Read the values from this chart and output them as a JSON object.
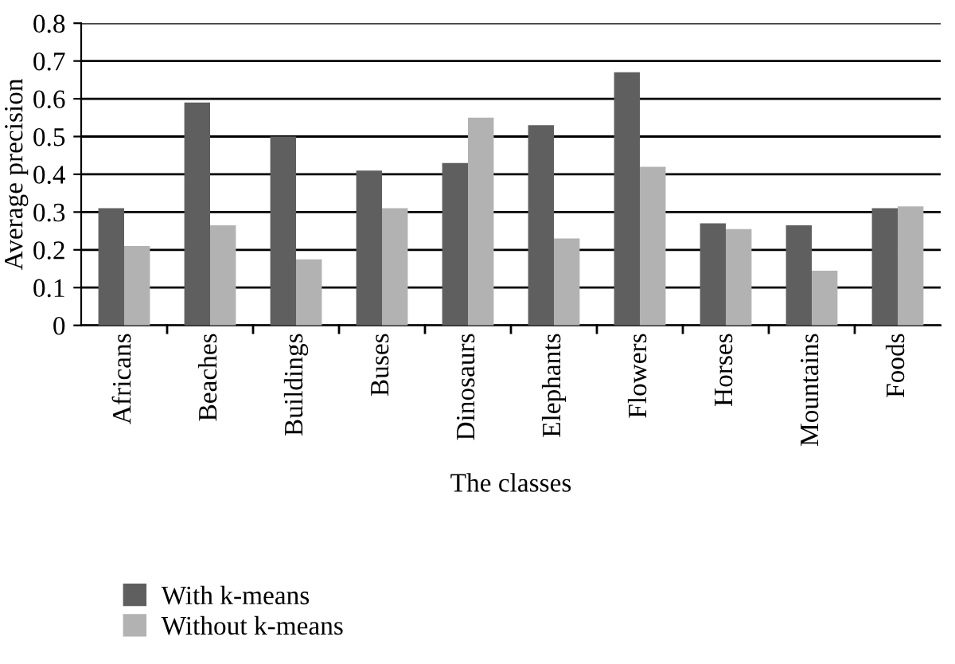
{
  "chart_data": {
    "type": "bar",
    "xlabel": "The classes",
    "ylabel": "Average precision",
    "categories": [
      "Africans",
      "Beaches",
      "Buildings",
      "Buses",
      "Dinosaurs",
      "Elephants",
      "Flowers",
      "Horses",
      "Mountains",
      "Foods"
    ],
    "series": [
      {
        "name": "With k-means",
        "color": "#5f5f5f",
        "values": [
          0.31,
          0.59,
          0.5,
          0.41,
          0.43,
          0.53,
          0.67,
          0.27,
          0.265,
          0.31
        ]
      },
      {
        "name": "Without k-means",
        "color": "#b2b2b2",
        "values": [
          0.21,
          0.265,
          0.175,
          0.31,
          0.55,
          0.23,
          0.42,
          0.255,
          0.145,
          0.315
        ]
      }
    ],
    "ylim": [
      0,
      0.8
    ],
    "yticks": [
      {
        "value": 0,
        "label": "0"
      },
      0.1,
      0.2,
      0.3,
      0.4,
      0.5,
      0.6,
      0.7,
      0.8
    ],
    "grid": "y",
    "legend": "bottom"
  }
}
